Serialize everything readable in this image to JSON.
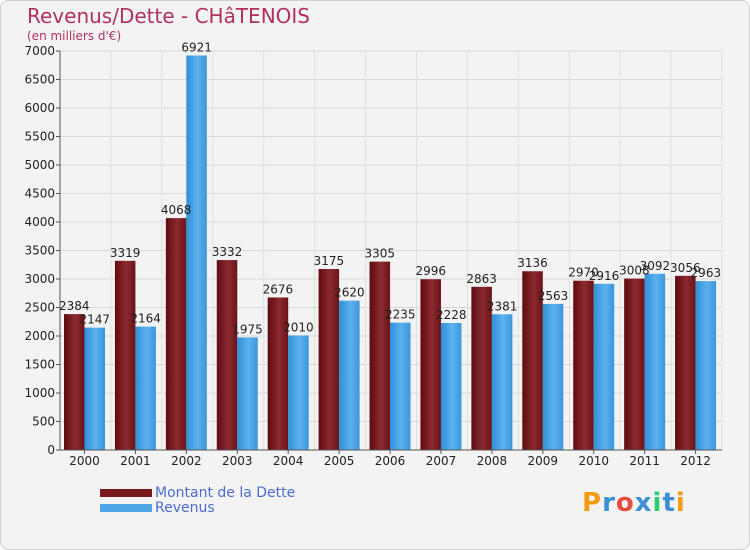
{
  "header": {
    "title": "Revenus/Dette - CHâTENOIS",
    "subtitle": "(en milliers d'€)"
  },
  "logo": {
    "text": "Proxiti",
    "colors": [
      "#f39c12",
      "#3b8fd6",
      "#e74c3c",
      "#3b8fd6",
      "#2ecc71",
      "#3b8fd6",
      "#f39c12"
    ]
  },
  "legend": {
    "items": [
      {
        "label": "Montant de la Dette",
        "color": "#7a1a1f"
      },
      {
        "label": "Revenus",
        "color": "#4da6e8"
      }
    ]
  },
  "chart_data": {
    "type": "bar",
    "title": "Revenus/Dette - CHâTENOIS",
    "subtitle": "(en milliers d'€)",
    "xlabel": "",
    "ylabel": "",
    "ylim": [
      0,
      7000
    ],
    "yticks": [
      0,
      500,
      1000,
      1500,
      2000,
      2500,
      3000,
      3500,
      4000,
      4500,
      5000,
      5500,
      6000,
      6500,
      7000
    ],
    "grid": true,
    "legend_position": "bottom-left",
    "categories": [
      "2000",
      "2001",
      "2002",
      "2003",
      "2004",
      "2005",
      "2006",
      "2007",
      "2008",
      "2009",
      "2010",
      "2011",
      "2012"
    ],
    "series": [
      {
        "name": "Montant de la Dette",
        "color": "#7a1a1f",
        "values": [
          2384,
          3319,
          4068,
          3332,
          2676,
          3175,
          3305,
          2996,
          2863,
          3136,
          2970,
          3008,
          3056
        ]
      },
      {
        "name": "Revenus",
        "color": "#4da6e8",
        "values": [
          2147,
          2164,
          6921,
          1975,
          2010,
          2620,
          2235,
          2228,
          2381,
          2563,
          2916,
          3092,
          2963
        ]
      }
    ]
  }
}
